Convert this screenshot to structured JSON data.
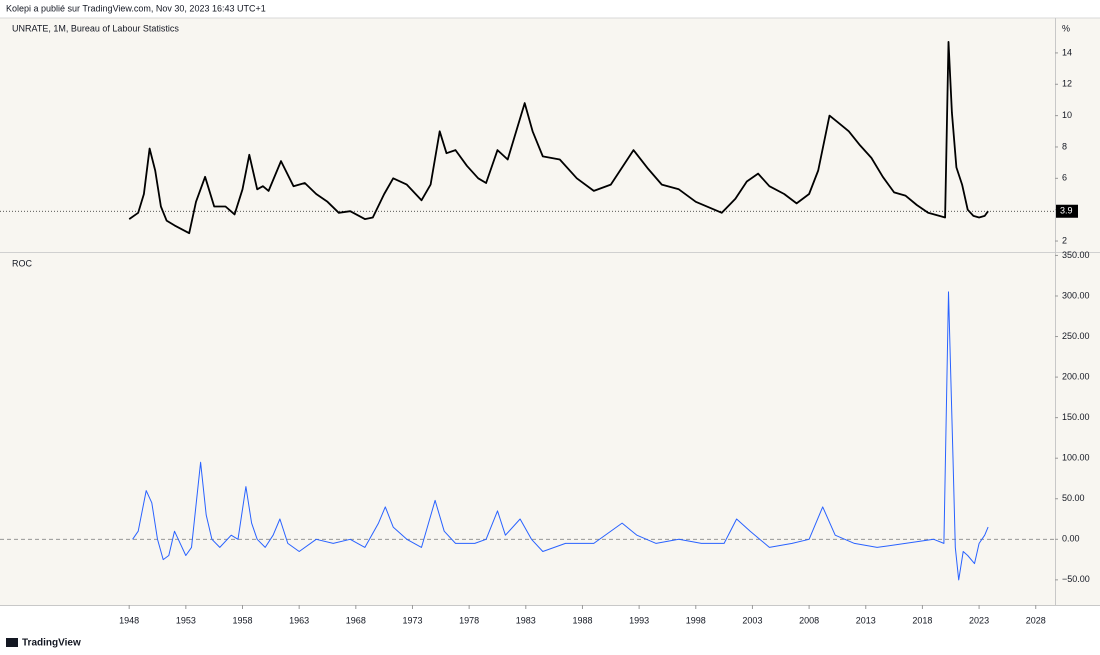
{
  "header": {
    "publisher": "Kolepi a publié sur TradingView.com, Nov 30, 2023 16:43 UTC+1",
    "brand": "TradingView"
  },
  "chart_data": [
    {
      "type": "line",
      "title": "UNRATE, 1M, Bureau of Labour Statistics",
      "unit": "%",
      "color": "#000000",
      "x": [
        1948.0,
        1948.8,
        1949.3,
        1949.8,
        1950.3,
        1950.8,
        1951.3,
        1952.0,
        1953.3,
        1953.9,
        1954.7,
        1955.5,
        1956.5,
        1957.3,
        1958.0,
        1958.6,
        1959.3,
        1959.8,
        1960.3,
        1961.4,
        1962.5,
        1963.5,
        1964.5,
        1965.5,
        1966.5,
        1967.5,
        1968.8,
        1969.5,
        1970.5,
        1971.3,
        1972.5,
        1973.8,
        1974.6,
        1975.4,
        1976.0,
        1976.8,
        1977.8,
        1978.8,
        1979.5,
        1980.5,
        1981.4,
        1982.9,
        1983.6,
        1984.5,
        1986.0,
        1987.5,
        1989.0,
        1990.5,
        1992.5,
        1993.8,
        1995.0,
        1996.5,
        1998.0,
        2000.3,
        2001.5,
        2002.5,
        2003.5,
        2004.5,
        2005.8,
        2006.9,
        2008.0,
        2008.8,
        2009.8,
        2010.5,
        2011.5,
        2012.5,
        2013.5,
        2014.5,
        2015.5,
        2016.5,
        2017.5,
        2018.5,
        2019.5,
        2020.0,
        2020.3,
        2020.6,
        2021.0,
        2021.5,
        2022.0,
        2022.5,
        2023.0,
        2023.5,
        2023.8
      ],
      "values": [
        3.4,
        3.8,
        5.0,
        7.9,
        6.5,
        4.2,
        3.3,
        3.0,
        2.5,
        4.5,
        6.1,
        4.2,
        4.2,
        3.7,
        5.3,
        7.5,
        5.3,
        5.5,
        5.2,
        7.1,
        5.5,
        5.7,
        5.0,
        4.5,
        3.8,
        3.9,
        3.4,
        3.5,
        5.0,
        6.0,
        5.6,
        4.6,
        5.6,
        9.0,
        7.6,
        7.8,
        6.8,
        6.0,
        5.7,
        7.8,
        7.2,
        10.8,
        9.0,
        7.4,
        7.2,
        6.0,
        5.2,
        5.6,
        7.8,
        6.6,
        5.6,
        5.3,
        4.5,
        3.8,
        4.7,
        5.8,
        6.3,
        5.5,
        5.0,
        4.4,
        5.0,
        6.5,
        10.0,
        9.6,
        9.0,
        8.1,
        7.3,
        6.1,
        5.1,
        4.9,
        4.3,
        3.8,
        3.6,
        3.5,
        14.7,
        10.2,
        6.7,
        5.6,
        4.0,
        3.6,
        3.5,
        3.6,
        3.9
      ],
      "last_value": 3.9,
      "last_label": "3.9",
      "xlim": [
        1936.6,
        2029.7
      ],
      "ylim": [
        1.3,
        16.1
      ],
      "yticks": [
        2,
        4,
        6,
        8,
        10,
        12,
        14
      ]
    },
    {
      "type": "line",
      "title": "ROC",
      "color": "#2962ff",
      "hline": 0,
      "x": [
        1948.3,
        1948.8,
        1949.5,
        1950.0,
        1950.5,
        1951.0,
        1951.5,
        1952.0,
        1952.5,
        1953.0,
        1953.5,
        1954.3,
        1954.8,
        1955.3,
        1956.0,
        1957.0,
        1957.6,
        1958.3,
        1958.8,
        1959.3,
        1960.0,
        1960.7,
        1961.3,
        1962.0,
        1963.0,
        1964.5,
        1966.0,
        1967.5,
        1968.8,
        1970.0,
        1970.6,
        1971.3,
        1972.5,
        1973.8,
        1975.0,
        1975.8,
        1976.8,
        1978.5,
        1979.5,
        1980.5,
        1981.2,
        1982.5,
        1983.5,
        1984.5,
        1986.5,
        1989.0,
        1991.5,
        1992.8,
        1994.5,
        1996.5,
        1998.5,
        2000.5,
        2001.6,
        2002.8,
        2004.5,
        2006.5,
        2008.0,
        2009.2,
        2010.3,
        2012.0,
        2014.0,
        2016.5,
        2019.0,
        2019.9,
        2020.3,
        2020.7,
        2020.9,
        2021.2,
        2021.6,
        2022.0,
        2022.6,
        2023.0,
        2023.5,
        2023.8
      ],
      "values": [
        0,
        10,
        60,
        45,
        0,
        -25,
        -20,
        10,
        -5,
        -20,
        -10,
        95,
        30,
        0,
        -10,
        5,
        0,
        65,
        20,
        0,
        -10,
        5,
        25,
        -5,
        -15,
        0,
        -5,
        0,
        -10,
        20,
        40,
        15,
        0,
        -10,
        48,
        10,
        -5,
        -5,
        0,
        35,
        5,
        25,
        0,
        -15,
        -5,
        -5,
        20,
        5,
        -5,
        0,
        -5,
        -5,
        25,
        10,
        -10,
        -5,
        0,
        40,
        5,
        -5,
        -10,
        -5,
        0,
        -5,
        305,
        100,
        -10,
        -50,
        -15,
        -20,
        -30,
        -5,
        5,
        15
      ],
      "xlim": [
        1936.6,
        2029.7
      ],
      "ylim": [
        -81,
        353
      ],
      "yticks": [
        {
          "value": -50,
          "label": "−50.00"
        },
        {
          "value": 0,
          "label": "0.00"
        },
        {
          "value": 50,
          "label": "50.00"
        },
        {
          "value": 100,
          "label": "100.00"
        },
        {
          "value": 150,
          "label": "150.00"
        },
        {
          "value": 200,
          "label": "200.00"
        },
        {
          "value": 250,
          "label": "250.00"
        },
        {
          "value": 300,
          "label": "300.00"
        },
        {
          "value": 350,
          "label": "350.00"
        }
      ],
      "xticks": [
        1948,
        1953,
        1958,
        1963,
        1968,
        1973,
        1978,
        1983,
        1988,
        1993,
        1998,
        2003,
        2008,
        2013,
        2018,
        2023,
        2028
      ]
    }
  ]
}
